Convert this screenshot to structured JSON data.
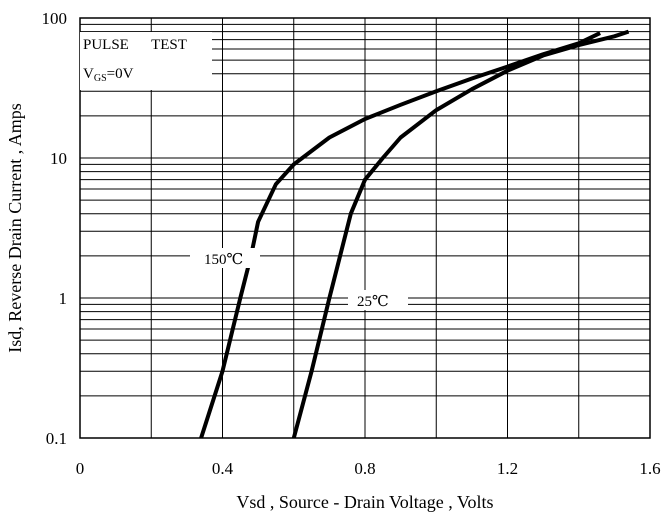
{
  "chart_data": {
    "type": "line",
    "xlabel": "Vsd , Source - Drain Voltage , Volts",
    "ylabel": "Isd, Reverse Drain Current , Amps",
    "xlim": [
      0,
      1.6
    ],
    "ylim": [
      0.1,
      100
    ],
    "y_scale": "log",
    "grid": true,
    "x_ticks": [
      0,
      0.2,
      0.4,
      0.6,
      0.8,
      1.0,
      1.2,
      1.4,
      1.6
    ],
    "x_tick_labels": [
      "0",
      "0.4",
      "0.8",
      "1.2",
      "1.6"
    ],
    "y_tick_labels": [
      "0.1",
      "1",
      "10",
      "100"
    ],
    "annotation": {
      "line1": "PULSE      TEST",
      "vgs_main": "V",
      "vgs_sub": "GS",
      "vgs_value": "=0V"
    },
    "series": [
      {
        "name": "150℃",
        "color": "#000000",
        "points": [
          [
            0.34,
            0.1
          ],
          [
            0.4,
            0.3
          ],
          [
            0.45,
            1.0
          ],
          [
            0.48,
            2.0
          ],
          [
            0.5,
            3.5
          ],
          [
            0.55,
            6.5
          ],
          [
            0.6,
            9.0
          ],
          [
            0.7,
            14.0
          ],
          [
            0.8,
            19.0
          ],
          [
            0.9,
            24.0
          ],
          [
            1.0,
            30.0
          ],
          [
            1.1,
            37.0
          ],
          [
            1.2,
            45.0
          ],
          [
            1.3,
            55.0
          ],
          [
            1.4,
            66.0
          ],
          [
            1.46,
            78.0
          ]
        ]
      },
      {
        "name": "25℃",
        "color": "#000000",
        "points": [
          [
            0.6,
            0.1
          ],
          [
            0.65,
            0.3
          ],
          [
            0.7,
            1.0
          ],
          [
            0.73,
            2.0
          ],
          [
            0.76,
            4.0
          ],
          [
            0.8,
            7.0
          ],
          [
            0.85,
            10.0
          ],
          [
            0.9,
            14.0
          ],
          [
            1.0,
            22.0
          ],
          [
            1.1,
            31.0
          ],
          [
            1.2,
            42.0
          ],
          [
            1.3,
            54.0
          ],
          [
            1.4,
            64.0
          ],
          [
            1.5,
            74.0
          ],
          [
            1.54,
            80.0
          ]
        ]
      }
    ]
  }
}
